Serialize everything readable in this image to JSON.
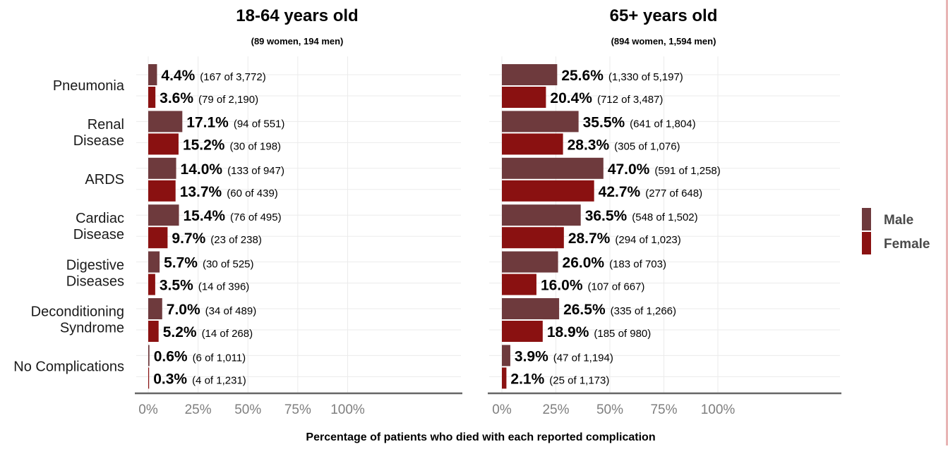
{
  "chart_data": {
    "type": "bar",
    "orientation": "horizontal",
    "xlabel": "Percentage of patients who died with each reported complication",
    "xlim": [
      0,
      100
    ],
    "x_ticks": [
      "0%",
      "25%",
      "50%",
      "75%",
      "100%"
    ],
    "categories": [
      [
        "Pneumonia"
      ],
      [
        "Renal",
        "Disease"
      ],
      [
        "ARDS"
      ],
      [
        "Cardiac",
        "Disease"
      ],
      [
        "Digestive",
        "Diseases"
      ],
      [
        "Deconditioning",
        "Syndrome"
      ],
      [
        "No Complications"
      ]
    ],
    "colors": {
      "Male": "#6e3a3d",
      "Female": "#8a1111"
    },
    "legend": {
      "position": "right",
      "entries": [
        "Male",
        "Female"
      ]
    },
    "grid": true,
    "panels": [
      {
        "title": "18-64 years old",
        "subtitle": "(89 women, 194 men)",
        "series": [
          {
            "name": "Male",
            "values": [
              4.4,
              17.1,
              14.0,
              15.4,
              5.7,
              7.0,
              0.6
            ],
            "value_labels": [
              "4.4%",
              "17.1%",
              "14.0%",
              "15.4%",
              "5.7%",
              "7.0%",
              "0.6%"
            ],
            "counts": [
              "(167 of 3,772)",
              "(94 of 551)",
              "(133 of 947)",
              "(76 of 495)",
              "(30 of 525)",
              "(34 of 489)",
              "(6 of 1,011)"
            ]
          },
          {
            "name": "Female",
            "values": [
              3.6,
              15.2,
              13.7,
              9.7,
              3.5,
              5.2,
              0.3
            ],
            "value_labels": [
              "3.6%",
              "15.2%",
              "13.7%",
              "9.7%",
              "3.5%",
              "5.2%",
              "0.3%"
            ],
            "counts": [
              "(79 of 2,190)",
              "(30 of 198)",
              "(60 of 439)",
              "(23 of 238)",
              "(14 of 396)",
              "(14 of 268)",
              "(4 of 1,231)"
            ]
          }
        ]
      },
      {
        "title": "65+ years old",
        "subtitle": "(894 women, 1,594 men)",
        "series": [
          {
            "name": "Male",
            "values": [
              25.6,
              35.5,
              47.0,
              36.5,
              26.0,
              26.5,
              3.9
            ],
            "value_labels": [
              "25.6%",
              "35.5%",
              "47.0%",
              "36.5%",
              "26.0%",
              "26.5%",
              "3.9%"
            ],
            "counts": [
              "(1,330 of 5,197)",
              "(641 of 1,804)",
              "(591 of 1,258)",
              "(548 of 1,502)",
              "(183 of 703)",
              "(335 of 1,266)",
              "(47 of 1,194)"
            ]
          },
          {
            "name": "Female",
            "values": [
              20.4,
              28.3,
              42.7,
              28.7,
              16.0,
              18.9,
              2.1
            ],
            "value_labels": [
              "20.4%",
              "28.3%",
              "42.7%",
              "28.7%",
              "16.0%",
              "18.9%",
              "2.1%"
            ],
            "counts": [
              "(712 of 3,487)",
              "(305 of 1,076)",
              "(277 of 648)",
              "(294 of 1,023)",
              "(107 of 667)",
              "(185 of 980)",
              "(25 of 1,173)"
            ]
          }
        ]
      }
    ]
  }
}
